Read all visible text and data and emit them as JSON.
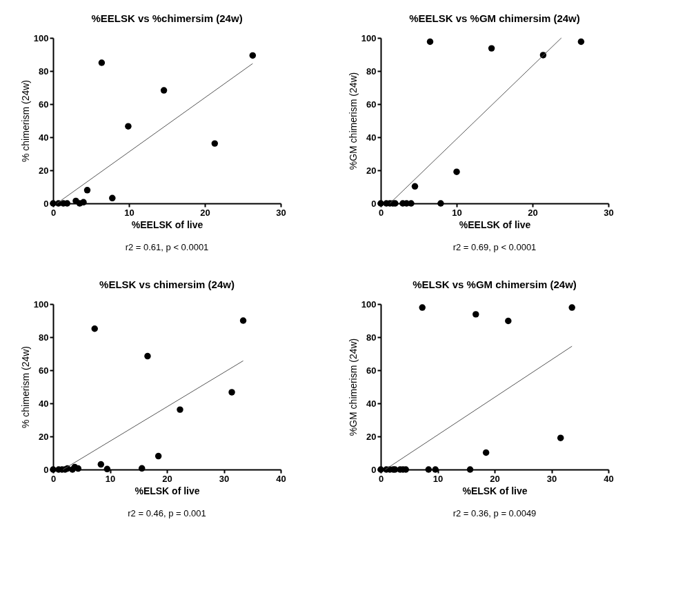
{
  "chart_data": [
    {
      "type": "scatter",
      "title": "%EELSK vs %chimersim (24w)",
      "xlabel": "%EELSK of live",
      "ylabel": "% chimerism (24w)",
      "annotations": [
        "r2 = 0.61, p < 0.0001"
      ],
      "xlim": [
        0,
        30
      ],
      "xticks": [
        0,
        10,
        20,
        30
      ],
      "ylim": [
        0,
        100
      ],
      "yticks": [
        0,
        20,
        40,
        60,
        80,
        100
      ],
      "grid": false,
      "marker": "circle",
      "series": [
        {
          "color": "#000000",
          "x": [
            0,
            0.7,
            1.35,
            1.85,
            3.0,
            3.5,
            4.0,
            4.5,
            6.4,
            7.8,
            9.9,
            14.6,
            21.3,
            26.3
          ],
          "values": [
            0,
            0,
            0,
            0,
            1.5,
            0,
            0.7,
            8,
            85,
            3.2,
            46.6,
            68.3,
            36.2,
            89.4
          ]
        },
        {
          "type": "line",
          "marker": "none",
          "color": "#555555",
          "x": [
            0.5,
            26.3
          ],
          "values": [
            0,
            84.5
          ]
        }
      ]
    },
    {
      "type": "scatter",
      "title": "%EELSK vs %GM chimersim (24w)",
      "xlabel": "%EELSK of live",
      "ylabel": "%GM chimerism (24w)",
      "annotations": [
        "r2 = 0.69, p < 0.0001"
      ],
      "xlim": [
        0,
        30
      ],
      "xticks": [
        0,
        10,
        20,
        30
      ],
      "ylim": [
        0,
        100
      ],
      "yticks": [
        0,
        20,
        40,
        60,
        80,
        100
      ],
      "grid": false,
      "marker": "circle",
      "series": [
        {
          "color": "#000000",
          "x": [
            0,
            0.74,
            1.2,
            1.6,
            1.9,
            2.9,
            3.4,
            4.0,
            4.5,
            6.5,
            7.9,
            10,
            14.6,
            21.4,
            26.4
          ],
          "values": [
            0,
            0,
            0,
            0,
            0,
            0,
            0,
            0,
            10.3,
            97.7,
            0,
            19.1,
            93.7,
            89.6,
            97.7
          ]
        },
        {
          "type": "line",
          "marker": "none",
          "color": "#555555",
          "x": [
            1.2,
            23.8
          ],
          "values": [
            0,
            100
          ]
        }
      ]
    },
    {
      "type": "scatter",
      "title": "%ELSK vs chimersim (24w)",
      "xlabel": "%ELSK of live",
      "ylabel": "% chimerism (24w)",
      "annotations": [
        "r2 = 0.46, p = 0.001"
      ],
      "xlim": [
        0,
        40
      ],
      "xticks": [
        0,
        10,
        20,
        30,
        40
      ],
      "ylim": [
        0,
        100
      ],
      "yticks": [
        0,
        20,
        40,
        60,
        80,
        100
      ],
      "grid": false,
      "marker": "circle",
      "series": [
        {
          "color": "#000000",
          "x": [
            0,
            0.97,
            1.56,
            2.1,
            2.5,
            3.4,
            3.8,
            4.4,
            7.3,
            8.4,
            9.5,
            15.6,
            16.6,
            18.5,
            22.3,
            31.4,
            33.4
          ],
          "values": [
            0,
            0,
            0,
            0,
            0.6,
            0,
            1.5,
            0.6,
            85.1,
            3.1,
            0.3,
            0.7,
            68.5,
            8.1,
            36.2,
            46.7,
            90
          ]
        },
        {
          "type": "line",
          "marker": "none",
          "color": "#555555",
          "x": [
            1.75,
            33.4
          ],
          "values": [
            0,
            65.7
          ]
        }
      ]
    },
    {
      "type": "scatter",
      "title": "%ELSK vs %GM chimersim (24w)",
      "xlabel": "%ELSK of live",
      "ylabel": "%GM chimerism (24w)",
      "annotations": [
        "r2 = 0.36, p = 0.0049"
      ],
      "xlim": [
        0,
        40
      ],
      "xticks": [
        0,
        10,
        20,
        30,
        40
      ],
      "ylim": [
        0,
        100
      ],
      "yticks": [
        0,
        20,
        40,
        60,
        80,
        100
      ],
      "grid": false,
      "marker": "circle",
      "series": [
        {
          "color": "#000000",
          "x": [
            0,
            0.98,
            1.6,
            2.2,
            2.5,
            3.4,
            3.9,
            4.4,
            7.3,
            8.4,
            9.6,
            15.7,
            16.7,
            18.5,
            22.4,
            31.6,
            33.6
          ],
          "values": [
            0,
            0,
            0,
            0,
            0,
            0,
            0,
            0,
            97.9,
            0,
            0,
            0,
            93.8,
            10.2,
            89.8,
            19.1,
            97.9
          ]
        },
        {
          "type": "line",
          "marker": "none",
          "color": "#555555",
          "x": [
            0.8,
            33.6
          ],
          "values": [
            0,
            74.5
          ]
        }
      ]
    }
  ]
}
